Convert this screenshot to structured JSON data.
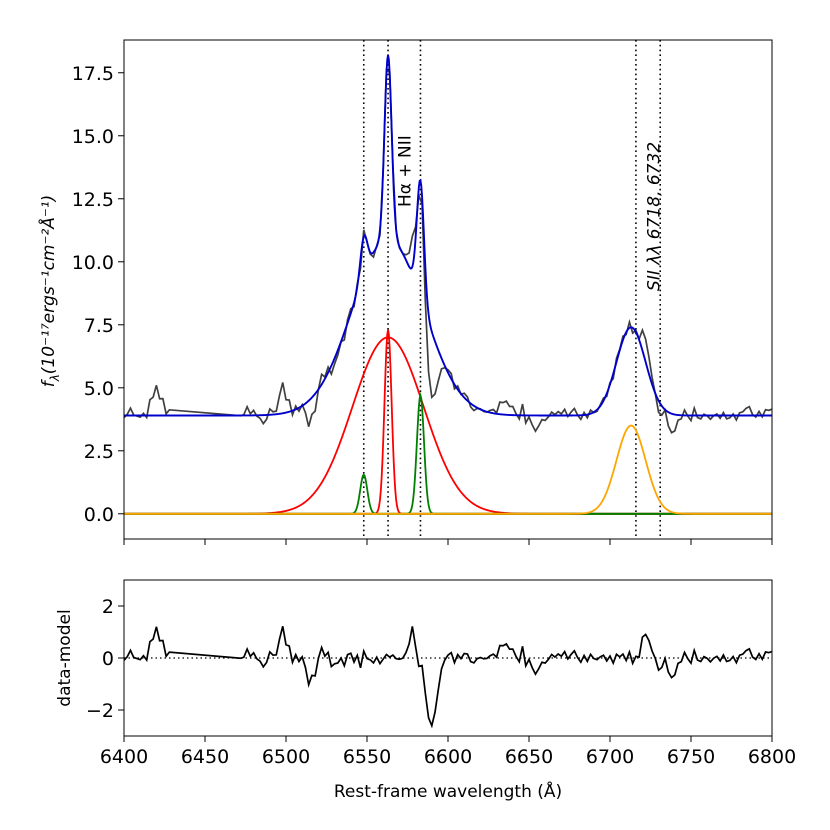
{
  "chart_data": [
    {
      "type": "line",
      "panel": "spectrum-fit",
      "xlim": [
        6400,
        6800
      ],
      "ylim": [
        -1.0,
        18.8
      ],
      "yticks": [
        0.0,
        2.5,
        5.0,
        7.5,
        10.0,
        12.5,
        15.0,
        17.5
      ],
      "ytick_labels": [
        "0.0",
        "2.5",
        "5.0",
        "7.5",
        "10.0",
        "12.5",
        "15.0",
        "17.5"
      ],
      "ylabel_prefix": "f",
      "ylabel_sub": "λ",
      "ylabel_rest": "(10⁻¹⁷ergs⁻¹cm⁻²Å⁻¹)",
      "continuum": 3.9,
      "data_gap": [
        6428,
        6471
      ],
      "vlines": [
        6548,
        6563,
        6583,
        6716,
        6731
      ],
      "annotations": [
        {
          "text": "Hα + NII",
          "x": 6573,
          "y": 13.6
        },
        {
          "text": "SII  λλ 6718, 6732",
          "x": 6727,
          "y": 11.8
        }
      ],
      "components": [
        {
          "name": "broad-halpha",
          "color": "#ff0000",
          "center": 6563,
          "amplitude": 7.0,
          "sigma": 22
        },
        {
          "name": "narrow-halpha",
          "color": "#ff0000",
          "center": 6563,
          "amplitude": 7.3,
          "sigma": 2.2
        },
        {
          "name": "nii-6548",
          "color": "#008000",
          "center": 6548,
          "amplitude": 1.55,
          "sigma": 2.2
        },
        {
          "name": "nii-6583",
          "color": "#008000",
          "center": 6583,
          "amplitude": 4.7,
          "sigma": 2.2
        },
        {
          "name": "sii-doublet",
          "color": "#ffa500",
          "center": 6713,
          "amplitude": 3.5,
          "sigma": 9
        }
      ],
      "model_color": "#0000cc",
      "data_color": "#404040"
    },
    {
      "type": "line",
      "panel": "residuals",
      "xlim": [
        6400,
        6800
      ],
      "ylim": [
        -3.0,
        3.0
      ],
      "yticks": [
        -2,
        0,
        2
      ],
      "ytick_labels": [
        "−2",
        "0",
        "2"
      ],
      "xticks": [
        6400,
        6450,
        6500,
        6550,
        6600,
        6650,
        6700,
        6750,
        6800
      ],
      "xtick_labels": [
        "6400",
        "6450",
        "6500",
        "6550",
        "6600",
        "6650",
        "6700",
        "6750",
        "6800"
      ],
      "ylabel": "data-model",
      "xlabel": "Rest-frame wavelength (Å)",
      "zero_line": 0,
      "features": [
        {
          "x": 6420,
          "dy": 1.1,
          "w": 2.5
        },
        {
          "x": 6498,
          "dy": 1.3,
          "w": 1.8
        },
        {
          "x": 6515,
          "dy": -1.0,
          "w": 2
        },
        {
          "x": 6578,
          "dy": 0.9,
          "w": 2
        },
        {
          "x": 6590,
          "dy": -2.5,
          "w": 3.5
        },
        {
          "x": 6636,
          "dy": 0.8,
          "w": 3
        },
        {
          "x": 6655,
          "dy": -0.8,
          "w": 2
        },
        {
          "x": 6722,
          "dy": 0.9,
          "w": 2.5
        },
        {
          "x": 6738,
          "dy": -0.8,
          "w": 2
        }
      ]
    }
  ]
}
